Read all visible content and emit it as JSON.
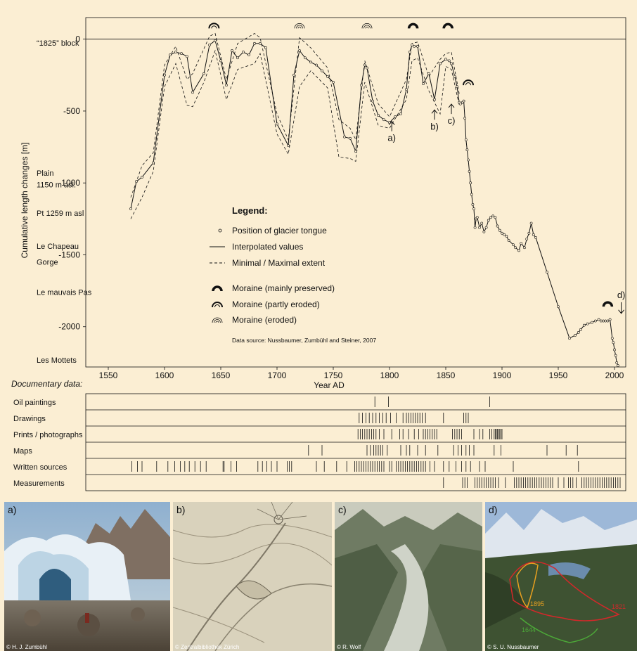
{
  "colors": {
    "background": "#fbeed3",
    "line": "#111111",
    "outline_1821": "#d3282a",
    "outline_1895": "#e8a020",
    "outline_1644": "#4ca838"
  },
  "chart_data": {
    "type": "line",
    "ylabel": "Cumulative length changes [m]",
    "xlabel": "Year AD",
    "xlim": [
      1530,
      2010
    ],
    "ylim": [
      -2280,
      150
    ],
    "x_ticks": [
      "1550",
      "1600",
      "1650",
      "1700",
      "1750",
      "1800",
      "1850",
      "1900",
      "1950",
      "2000"
    ],
    "y_ticks": [
      "0",
      "-500",
      "-1000",
      "-1500",
      "-2000"
    ],
    "location_labels": [
      {
        "text": "“1825” block",
        "value": -25
      },
      {
        "text": "Plain",
        "value": -930
      },
      {
        "text": "1150 m asl.",
        "value": -1010
      },
      {
        "text": "Pt 1259 m asl",
        "value": -1210
      },
      {
        "text": "Le Chapeau",
        "value": -1440
      },
      {
        "text": "Gorge",
        "value": -1550
      },
      {
        "text": "Le mauvais Pas",
        "value": -1760
      },
      {
        "text": "Les Mottets",
        "value": -2230
      }
    ],
    "series": [
      {
        "name": "Interpolated values",
        "x": [
          1570,
          1575,
          1580,
          1590,
          1600,
          1605,
          1610,
          1615,
          1620,
          1625,
          1635,
          1640,
          1645,
          1650,
          1655,
          1660,
          1665,
          1670,
          1675,
          1680,
          1685,
          1690,
          1700,
          1710,
          1715,
          1720,
          1725,
          1730,
          1735,
          1740,
          1745,
          1750,
          1760,
          1765,
          1770,
          1775,
          1778,
          1780,
          1785,
          1790,
          1795,
          1800,
          1805,
          1810,
          1815,
          1818,
          1820,
          1822,
          1825,
          1830,
          1835,
          1840,
          1845,
          1850,
          1853,
          1855,
          1858,
          1860,
          1862,
          1863,
          1865,
          1866,
          1867,
          1868,
          1869,
          1870,
          1871,
          1872,
          1873,
          1874,
          1875,
          1876,
          1877,
          1878,
          1880,
          1882,
          1884,
          1886,
          1888,
          1890,
          1892,
          1894,
          1896,
          1898,
          1900,
          1902,
          1904,
          1906,
          1910,
          1912,
          1915,
          1917,
          1920,
          1922,
          1924,
          1926,
          1928,
          1930,
          1940,
          1950,
          1960,
          1965,
          1968,
          1970,
          1973,
          1976,
          1980,
          1983,
          1986,
          1988,
          1990,
          1992,
          1994,
          1996,
          1998,
          1999,
          2000,
          2001,
          2002,
          2003
        ],
        "values": [
          -1180,
          -990,
          -960,
          -860,
          -250,
          -110,
          -90,
          -100,
          -120,
          -370,
          -240,
          -40,
          -10,
          -150,
          -320,
          -80,
          -130,
          -90,
          -110,
          -30,
          -30,
          -60,
          -590,
          -740,
          -250,
          -80,
          -130,
          -160,
          -180,
          -220,
          -260,
          -300,
          -680,
          -690,
          -780,
          -320,
          -180,
          -200,
          -430,
          -530,
          -560,
          -580,
          -540,
          -520,
          -350,
          -90,
          -40,
          -50,
          -50,
          -310,
          -240,
          -420,
          -170,
          -140,
          -150,
          -170,
          -260,
          -330,
          -440,
          -450,
          -440,
          -430,
          -550,
          -700,
          -770,
          -840,
          -920,
          -1000,
          -1080,
          -1150,
          -1180,
          -1310,
          -1250,
          -1240,
          -1310,
          -1280,
          -1340,
          -1310,
          -1260,
          -1240,
          -1230,
          -1240,
          -1300,
          -1330,
          -1350,
          -1360,
          -1370,
          -1400,
          -1430,
          -1450,
          -1470,
          -1420,
          -1450,
          -1390,
          -1350,
          -1280,
          -1360,
          -1380,
          -1620,
          -1860,
          -2080,
          -2060,
          -2040,
          -2020,
          -1990,
          -1980,
          -1970,
          -1960,
          -1950,
          -1960,
          -1960,
          -1960,
          -1960,
          -1950,
          -2080,
          -2110,
          -2160,
          -2200,
          -2250,
          -2270
        ]
      },
      {
        "name": "Minimal / Maximal extent",
        "x": [
          1570,
          1580,
          1590,
          1600,
          1610,
          1620,
          1625,
          1640,
          1645,
          1655,
          1665,
          1680,
          1685,
          1700,
          1710,
          1720,
          1730,
          1745,
          1755,
          1765,
          1770,
          1778,
          1790,
          1800,
          1815,
          1820,
          1825,
          1835,
          1845,
          1850,
          1855,
          1862
        ],
        "values": [
          -1100,
          -880,
          -790,
          -180,
          -50,
          -280,
          -240,
          20,
          40,
          -280,
          -30,
          40,
          10,
          -520,
          -700,
          10,
          -60,
          -200,
          -560,
          -620,
          -700,
          -150,
          -450,
          -540,
          -280,
          -30,
          -20,
          -260,
          -140,
          -100,
          -90,
          -380
        ]
      },
      {
        "name": "Minimal / Maximal extent",
        "x": [
          1570,
          1580,
          1590,
          1600,
          1610,
          1620,
          1625,
          1635,
          1645,
          1655,
          1665,
          1680,
          1685,
          1700,
          1710,
          1720,
          1730,
          1745,
          1755,
          1765,
          1770,
          1778,
          1790,
          1800,
          1815,
          1820,
          1825,
          1835,
          1845,
          1850,
          1855,
          1862
        ],
        "values": [
          -1250,
          -1100,
          -920,
          -330,
          -170,
          -460,
          -470,
          -300,
          -80,
          -420,
          -210,
          -170,
          -100,
          -660,
          -800,
          -330,
          -220,
          -340,
          -820,
          -830,
          -850,
          -300,
          -600,
          -620,
          -420,
          -150,
          -130,
          -360,
          -520,
          -190,
          -210,
          -460
        ]
      }
    ],
    "moraines": [
      {
        "year": 1644,
        "value": 75,
        "type": "partly eroded"
      },
      {
        "year": 1720,
        "value": 75,
        "type": "eroded"
      },
      {
        "year": 1780,
        "value": 75,
        "type": "eroded"
      },
      {
        "year": 1821,
        "value": 75,
        "type": "mainly preserved"
      },
      {
        "year": 1852,
        "value": 75,
        "type": "mainly preserved"
      },
      {
        "year": 1870,
        "value": -320,
        "type": "partly eroded"
      },
      {
        "year": 1994,
        "value": -1860,
        "type": "mainly preserved"
      }
    ],
    "annotations": [
      {
        "text": "a)",
        "year": 1802,
        "value": -650,
        "arrow": "up"
      },
      {
        "text": "b)",
        "year": 1840,
        "value": -570,
        "arrow": "up"
      },
      {
        "text": "c)",
        "year": 1855,
        "value": -530,
        "arrow": "up"
      },
      {
        "text": "d)",
        "year": 2006,
        "value": -1800,
        "arrow": "down"
      }
    ],
    "legend": {
      "title": "Legend:",
      "position_of_tongue": "Position of glacier tongue",
      "interpolated": "Interpolated values",
      "extent": "Minimal / Maximal extent",
      "moraine_preserved": "Moraine (mainly preserved)",
      "moraine_partly": "Moraine (partly eroded)",
      "moraine_eroded": "Moraine (eroded)",
      "source": "Data source: Nussbaumer, Zumbühl and Steiner, 2007"
    },
    "documentary": {
      "title": "Documentary data:",
      "rows": [
        {
          "label": "Oil paintings",
          "years": [
            1787,
            1799,
            1889
          ]
        },
        {
          "label": "Drawings",
          "years": [
            1773,
            1776,
            1779,
            1782,
            1785,
            1788,
            1791,
            1794,
            1797,
            1801,
            1806,
            1812,
            1815,
            1817,
            1819,
            1821,
            1823,
            1825,
            1827,
            1829,
            1832,
            1848,
            1866,
            1868,
            1870
          ]
        },
        {
          "label": "Prints / photographs",
          "years": [
            1772,
            1774,
            1776,
            1778,
            1780,
            1782,
            1784,
            1786,
            1788,
            1791,
            1795,
            1802,
            1809,
            1812,
            1817,
            1822,
            1826,
            1830,
            1832,
            1834,
            1836,
            1838,
            1840,
            1842,
            1856,
            1858,
            1860,
            1862,
            1864,
            1875,
            1880,
            1883,
            1889,
            1891,
            1893,
            1894,
            1895,
            1896,
            1897,
            1898,
            1899,
            1900
          ]
        },
        {
          "label": "Maps",
          "years": [
            1728,
            1740,
            1780,
            1783,
            1786,
            1788,
            1790,
            1792,
            1794,
            1798,
            1810,
            1815,
            1818,
            1825,
            1832,
            1843,
            1857,
            1861,
            1864,
            1868,
            1871,
            1875,
            1893,
            1899,
            1940,
            1957,
            1967
          ]
        },
        {
          "label": "Written sources",
          "years": [
            1571,
            1576,
            1580,
            1593,
            1603,
            1609,
            1614,
            1618,
            1622,
            1627,
            1632,
            1637,
            1652,
            1653,
            1659,
            1664,
            1683,
            1687,
            1691,
            1695,
            1700,
            1709,
            1711,
            1713,
            1735,
            1742,
            1753,
            1762,
            1769,
            1771,
            1773,
            1775,
            1777,
            1779,
            1781,
            1783,
            1785,
            1787,
            1789,
            1791,
            1793,
            1795,
            1800,
            1802,
            1806,
            1808,
            1810,
            1812,
            1814,
            1816,
            1818,
            1820,
            1822,
            1824,
            1826,
            1828,
            1830,
            1832,
            1836,
            1840,
            1848,
            1853,
            1859,
            1864,
            1868,
            1872,
            1880,
            1885,
            1910,
            1968
          ]
        },
        {
          "label": "Measurements",
          "years": [
            1848,
            1865,
            1867,
            1869,
            1876,
            1878,
            1880,
            1882,
            1884,
            1886,
            1888,
            1890,
            1892,
            1894,
            1897,
            1903,
            1911,
            1913,
            1915,
            1917,
            1919,
            1921,
            1923,
            1925,
            1927,
            1929,
            1931,
            1933,
            1935,
            1937,
            1939,
            1941,
            1943,
            1945,
            1950,
            1955,
            1959,
            1961,
            1963,
            1966,
            1971,
            1973,
            1975,
            1977,
            1979,
            1981,
            1983,
            1985,
            1987,
            1989,
            1991,
            1993,
            1995,
            1997,
            1999,
            2001,
            2003,
            2005
          ]
        }
      ]
    }
  },
  "photos": [
    {
      "label": "a)",
      "credit": "© H. J. Zumbühl"
    },
    {
      "label": "b)",
      "credit": "© Zentralbibliothek Zürich"
    },
    {
      "label": "c)",
      "credit": "© R. Wolf"
    },
    {
      "label": "d)",
      "credit": "© S. U. Nussbaumer",
      "outline_labels": [
        "1895",
        "1821",
        "1644"
      ]
    }
  ]
}
